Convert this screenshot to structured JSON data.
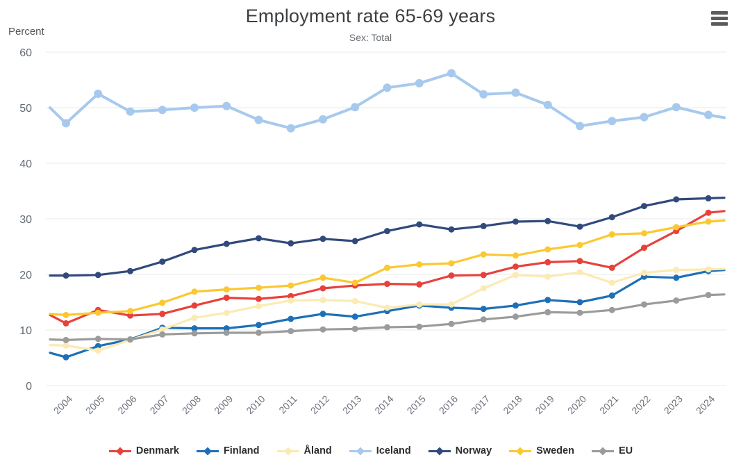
{
  "header": {
    "menu_icon": "hamburger-menu-icon"
  },
  "y_axis": {
    "label": "Percent",
    "ticks": [
      0,
      10,
      20,
      30,
      40,
      50,
      60
    ]
  },
  "chart_data": {
    "type": "line",
    "title": "Employment rate 65-69 years",
    "subtitle": "Sex: Total",
    "ylabel": "Percent",
    "xlabel": "",
    "ylim": [
      0,
      60
    ],
    "grid": true,
    "legend_position": "bottom",
    "marker": "circle",
    "categories": [
      "2004",
      "2005",
      "2006",
      "2007",
      "2008",
      "2009",
      "2010",
      "2011",
      "2012",
      "2013",
      "2014",
      "2015",
      "2016",
      "2017",
      "2018",
      "2019",
      "2020",
      "2021",
      "2022",
      "2023",
      "2024"
    ],
    "series": [
      {
        "name": "Denmark",
        "color": "#e8413c",
        "line_width": 3.2,
        "marker_radius": 4.5,
        "edge_start": 12.7,
        "edge_end": 31.4,
        "values": [
          11.2,
          13.6,
          12.6,
          12.9,
          14.4,
          15.8,
          15.6,
          16.1,
          17.5,
          18.0,
          18.3,
          18.2,
          19.8,
          19.9,
          21.4,
          22.2,
          22.4,
          21.2,
          24.8,
          27.8,
          31.1
        ]
      },
      {
        "name": "Finland",
        "color": "#1d6fb7",
        "line_width": 3.2,
        "marker_radius": 4.5,
        "edge_start": 5.9,
        "edge_end": 20.8,
        "values": [
          5.1,
          7.1,
          8.3,
          10.4,
          10.3,
          10.3,
          10.9,
          12.0,
          12.9,
          12.4,
          13.4,
          14.4,
          14.0,
          13.8,
          14.4,
          15.4,
          15.0,
          16.2,
          19.6,
          19.4,
          20.6
        ]
      },
      {
        "name": "Åland",
        "color": "#fbeab3",
        "line_width": 3.2,
        "marker_radius": 4.5,
        "edge_start": 7.3,
        "edge_end": 21.0,
        "values": [
          7.2,
          6.3,
          8.2,
          10.1,
          12.2,
          13.1,
          14.3,
          15.3,
          15.4,
          15.2,
          14.0,
          14.6,
          14.6,
          17.5,
          19.9,
          19.6,
          20.4,
          18.5,
          20.3,
          20.8,
          20.9
        ]
      },
      {
        "name": "Iceland",
        "color": "#a7c9ee",
        "line_width": 4,
        "marker_radius": 6,
        "edge_start": 50.0,
        "edge_end": 48.2,
        "values": [
          47.2,
          52.5,
          49.3,
          49.6,
          50.0,
          50.3,
          47.8,
          46.3,
          47.9,
          50.1,
          53.6,
          54.4,
          56.2,
          52.4,
          52.7,
          50.5,
          46.7,
          47.6,
          48.3,
          50.1,
          48.7
        ]
      },
      {
        "name": "Norway",
        "color": "#32497b",
        "line_width": 3.2,
        "marker_radius": 4.5,
        "edge_start": 19.8,
        "edge_end": 33.8,
        "values": [
          19.8,
          19.9,
          20.6,
          22.3,
          24.4,
          25.5,
          26.5,
          25.6,
          26.4,
          26.0,
          27.8,
          29.0,
          28.1,
          28.7,
          29.5,
          29.6,
          28.6,
          30.3,
          32.3,
          33.5,
          33.7
        ]
      },
      {
        "name": "Sweden",
        "color": "#fbc82f",
        "line_width": 3.2,
        "marker_radius": 4.5,
        "edge_start": 12.9,
        "edge_end": 29.7,
        "values": [
          12.7,
          13.1,
          13.4,
          14.9,
          16.9,
          17.3,
          17.6,
          18.0,
          19.4,
          18.5,
          21.2,
          21.8,
          22.0,
          23.6,
          23.4,
          24.5,
          25.3,
          27.2,
          27.4,
          28.5,
          29.5
        ]
      },
      {
        "name": "EU",
        "color": "#9b9b9b",
        "line_width": 3.2,
        "marker_radius": 4.5,
        "edge_start": 8.3,
        "edge_end": 16.4,
        "values": [
          8.2,
          8.4,
          8.3,
          9.2,
          9.4,
          9.5,
          9.5,
          9.8,
          10.1,
          10.2,
          10.5,
          10.6,
          11.1,
          11.9,
          12.4,
          13.2,
          13.1,
          13.6,
          14.6,
          15.3,
          16.3
        ]
      }
    ]
  },
  "style": {
    "grid_color": "#e8e8e8",
    "x_label_color": "#6d737d",
    "y_label_color": "#646b73"
  }
}
